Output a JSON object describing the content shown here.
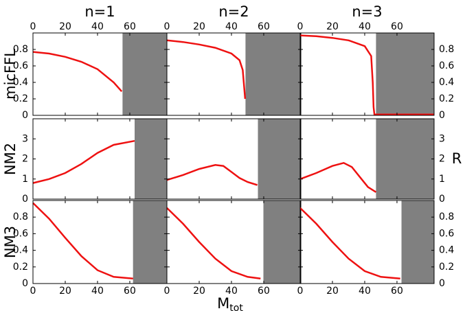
{
  "column_titles": [
    "n=1",
    "n=2",
    "n=3"
  ],
  "row_labels": [
    "micFFL",
    "NM2",
    "NM3"
  ],
  "right_label": "R",
  "xlabel": "M",
  "xlabel_sub": "tot",
  "title_color": "#1a8a8a",
  "row_label_color": "#b5651d",
  "chart_data": [
    {
      "type": "line",
      "row": 0,
      "col": 0,
      "xlim": [
        0,
        83
      ],
      "ylim": [
        0,
        1
      ],
      "xticks": [
        0,
        20,
        40,
        60
      ],
      "yticks": [
        0,
        0.2,
        0.4,
        0.6,
        0.8
      ],
      "x": [
        0,
        10,
        20,
        30,
        40,
        50,
        55
      ],
      "values": [
        0.77,
        0.75,
        0.71,
        0.65,
        0.56,
        0.4,
        0.29
      ],
      "color": "#ee1111",
      "shade_from": 55.5,
      "shade_color": "#808080"
    },
    {
      "type": "line",
      "row": 0,
      "col": 1,
      "xlim": [
        0,
        83
      ],
      "ylim": [
        0,
        1
      ],
      "xticks": [
        0,
        20,
        40,
        60
      ],
      "yticks": [
        0,
        0.2,
        0.4,
        0.6,
        0.8
      ],
      "x": [
        0,
        10,
        20,
        30,
        40,
        45,
        47,
        48.5
      ],
      "values": [
        0.91,
        0.89,
        0.86,
        0.82,
        0.75,
        0.67,
        0.55,
        0.2
      ],
      "color": "#ee1111",
      "shade_from": 48.7,
      "shade_color": "#808080"
    },
    {
      "type": "line",
      "row": 0,
      "col": 2,
      "xlim": [
        0,
        83
      ],
      "ylim": [
        0,
        1
      ],
      "xticks": [
        0,
        20,
        40,
        60
      ],
      "yticks": [
        0,
        0.2,
        0.4,
        0.6,
        0.8
      ],
      "x": [
        0,
        10,
        20,
        30,
        40,
        44,
        45,
        45.5,
        46,
        83
      ],
      "values": [
        0.97,
        0.96,
        0.94,
        0.91,
        0.84,
        0.72,
        0.4,
        0.1,
        0.01,
        0.01
      ],
      "color": "#ee1111",
      "shade_from": 47,
      "shade_color": "#808080"
    },
    {
      "type": "line",
      "row": 1,
      "col": 0,
      "xlim": [
        0,
        83
      ],
      "ylim": [
        0,
        4
      ],
      "xticks": [
        0,
        20,
        40,
        60
      ],
      "yticks": [
        0,
        1,
        2,
        3
      ],
      "x": [
        0,
        10,
        20,
        30,
        40,
        50,
        63
      ],
      "values": [
        0.8,
        1.0,
        1.3,
        1.75,
        2.3,
        2.7,
        2.9
      ],
      "color": "#ee1111",
      "shade_from": 63,
      "shade_color": "#808080"
    },
    {
      "type": "line",
      "row": 1,
      "col": 1,
      "xlim": [
        0,
        83
      ],
      "ylim": [
        0,
        4
      ],
      "xticks": [
        0,
        20,
        40,
        60
      ],
      "yticks": [
        0,
        1,
        2,
        3
      ],
      "x": [
        0,
        10,
        20,
        30,
        35,
        40,
        45,
        50,
        56
      ],
      "values": [
        0.95,
        1.2,
        1.5,
        1.7,
        1.65,
        1.35,
        1.05,
        0.85,
        0.7
      ],
      "color": "#ee1111",
      "shade_from": 56.4,
      "shade_color": "#808080"
    },
    {
      "type": "line",
      "row": 1,
      "col": 2,
      "xlim": [
        0,
        83
      ],
      "ylim": [
        0,
        4
      ],
      "xticks": [
        0,
        20,
        40,
        60
      ],
      "yticks": [
        0,
        1,
        2,
        3
      ],
      "x": [
        0,
        10,
        20,
        27,
        32,
        37,
        42,
        47
      ],
      "values": [
        1.0,
        1.3,
        1.65,
        1.8,
        1.6,
        1.1,
        0.6,
        0.35
      ],
      "color": "#ee1111",
      "shade_from": 47,
      "shade_color": "#808080"
    },
    {
      "type": "line",
      "row": 2,
      "col": 0,
      "xlim": [
        0,
        83
      ],
      "ylim": [
        0,
        1
      ],
      "xticks": [
        0,
        20,
        40,
        60
      ],
      "yticks": [
        0,
        0.2,
        0.4,
        0.6,
        0.8
      ],
      "x": [
        0,
        10,
        20,
        30,
        40,
        50,
        62
      ],
      "values": [
        0.97,
        0.78,
        0.55,
        0.33,
        0.16,
        0.08,
        0.06
      ],
      "color": "#ee1111",
      "shade_from": 62,
      "shade_color": "#808080"
    },
    {
      "type": "line",
      "row": 2,
      "col": 1,
      "xlim": [
        0,
        83
      ],
      "ylim": [
        0,
        1
      ],
      "xticks": [
        0,
        20,
        40,
        60
      ],
      "yticks": [
        0,
        0.2,
        0.4,
        0.6,
        0.8
      ],
      "x": [
        0,
        10,
        20,
        30,
        40,
        50,
        58
      ],
      "values": [
        0.91,
        0.72,
        0.5,
        0.3,
        0.15,
        0.08,
        0.06
      ],
      "color": "#ee1111",
      "shade_from": 59.8,
      "shade_color": "#808080"
    },
    {
      "type": "line",
      "row": 2,
      "col": 2,
      "xlim": [
        0,
        83
      ],
      "ylim": [
        0,
        1
      ],
      "xticks": [
        0,
        20,
        40,
        60
      ],
      "yticks": [
        0,
        0.2,
        0.4,
        0.6,
        0.8
      ],
      "x": [
        0,
        10,
        20,
        30,
        40,
        50,
        62
      ],
      "values": [
        0.91,
        0.72,
        0.5,
        0.3,
        0.15,
        0.08,
        0.06
      ],
      "color": "#ee1111",
      "shade_from": 62.8,
      "shade_color": "#808080"
    }
  ]
}
